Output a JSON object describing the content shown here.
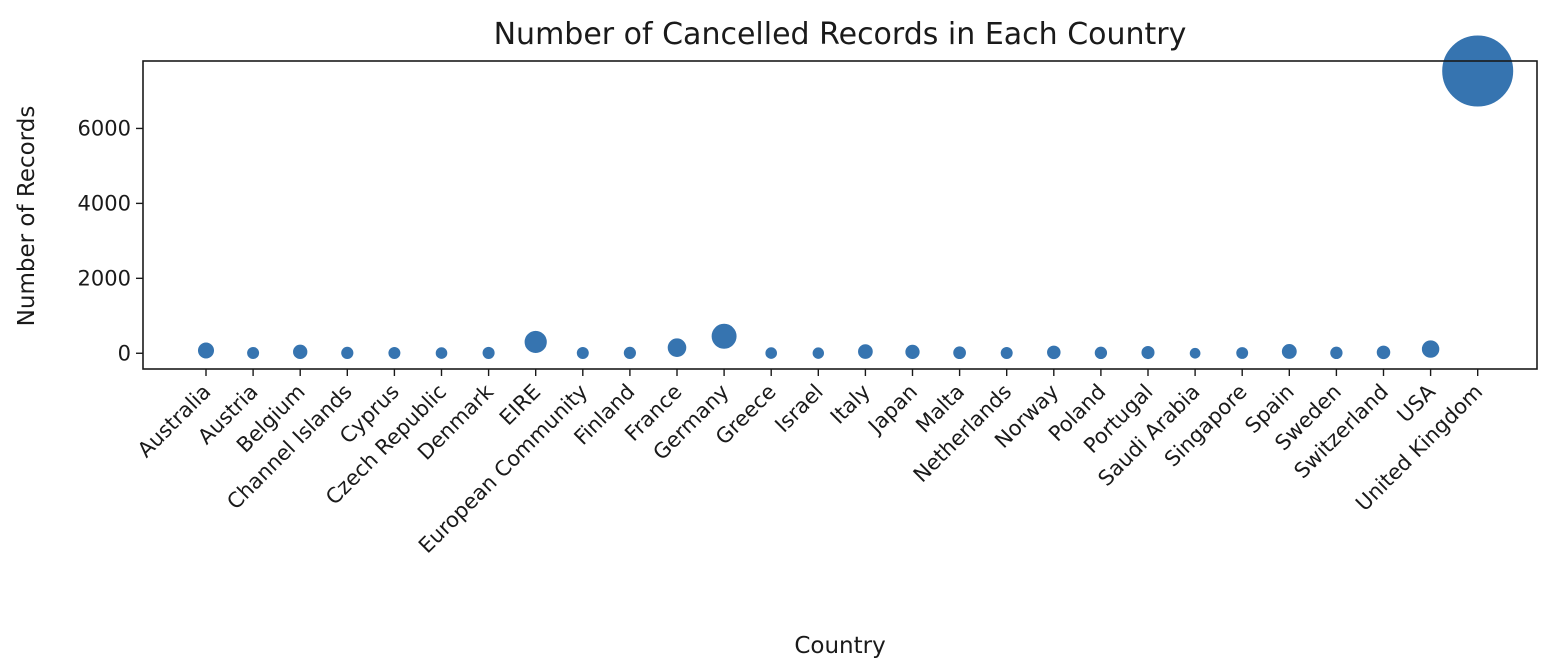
{
  "chart_data": {
    "type": "scatter",
    "title": "Number of Cancelled Records in Each Country",
    "xlabel": "Country",
    "ylabel": "Number of Records",
    "ylim": [
      -420,
      7800
    ],
    "yticks": [
      0,
      2000,
      4000,
      6000
    ],
    "grid": false,
    "legend": "none",
    "point_color": "#3674b0",
    "categories": [
      "Australia",
      "Austria",
      "Belgium",
      "Channel Islands",
      "Cyprus",
      "Czech Republic",
      "Denmark",
      "EIRE",
      "European Community",
      "Finland",
      "France",
      "Germany",
      "Greece",
      "Israel",
      "Italy",
      "Japan",
      "Malta",
      "Netherlands",
      "Norway",
      "Poland",
      "Portugal",
      "Saudi Arabia",
      "Singapore",
      "Spain",
      "Sweden",
      "Switzerland",
      "USA",
      "United Kingdom"
    ],
    "values": [
      74,
      8,
      38,
      10,
      8,
      5,
      9,
      302,
      8,
      10,
      149,
      453,
      5,
      4,
      45,
      37,
      15,
      8,
      25,
      11,
      19,
      1,
      7,
      48,
      11,
      25,
      112,
      7533
    ]
  }
}
